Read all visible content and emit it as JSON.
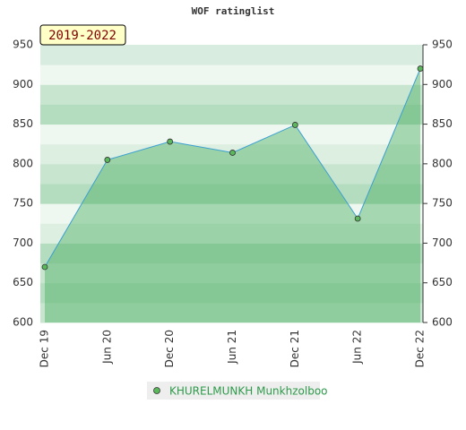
{
  "chart_data": {
    "type": "area",
    "title": "WOF ratinglist",
    "annotation": "2019-2022",
    "categories": [
      "Dec 19",
      "Jun 20",
      "Dec 20",
      "Jun 21",
      "Dec 21",
      "Jun 22",
      "Dec 22"
    ],
    "series": [
      {
        "name": "KHURELMUNKH Munkhzolboo",
        "color": "#3a9fd0",
        "values": [
          670,
          805,
          828,
          814,
          849,
          731,
          920
        ]
      }
    ],
    "ylim": [
      600,
      950
    ],
    "yticks": [
      600,
      650,
      700,
      750,
      800,
      850,
      900,
      950
    ]
  }
}
